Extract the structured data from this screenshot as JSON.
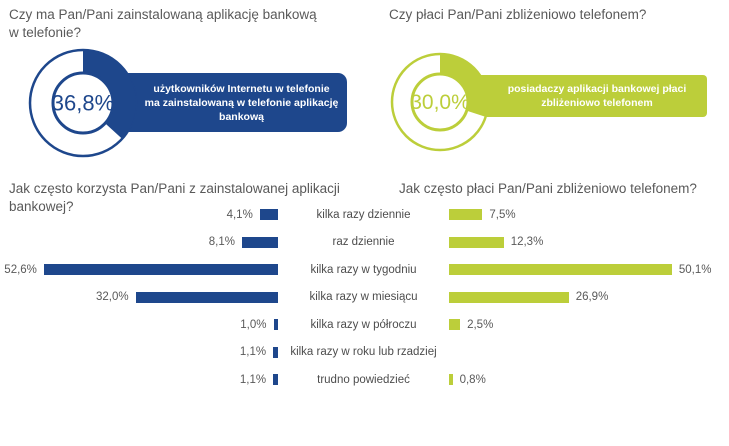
{
  "colors": {
    "blue": "#1E478C",
    "green": "#BCCE3A",
    "title_gray": "#595959",
    "category_gray": "#4d4d4d",
    "value_gray": "#595959"
  },
  "chart_data": [
    {
      "type": "pie",
      "subtype": "donut-single-value",
      "title": "Czy ma Pan/Pani zainstalowaną aplikację bankową\nw telefonie?",
      "value": 36.8,
      "remainder": 63.2,
      "value_label": "36,8%",
      "callout": "użytkowników Internetu w telefonie\nma zainstalowaną w telefonie aplikację\nbankową",
      "color": "#1E478C"
    },
    {
      "type": "pie",
      "subtype": "donut-single-value",
      "title": "Czy płaci Pan/Pani zbliżeniowo telefonem?",
      "value": 30.0,
      "remainder": 70.0,
      "value_label": "30,0%",
      "callout": "posiadaczy aplikacji bankowej płaci\nzbliżeniowo telefonem",
      "color": "#BCCE3A"
    },
    {
      "type": "bar",
      "orientation": "horizontal-right-to-left",
      "title": "Jak często korzysta Pan/Pani z zainstalowanej aplikacji\nbankowej?",
      "categories": [
        "kilka razy dziennie",
        "raz dziennie",
        "kilka razy w tygodniu",
        "kilka razy w miesiącu",
        "kilka razy w półroczu",
        "kilka razy w roku lub rzadziej",
        "trudno powiedzieć"
      ],
      "values": [
        4.1,
        8.1,
        52.6,
        32.0,
        1.0,
        1.1,
        1.1
      ],
      "value_labels": [
        "4,1%",
        "8,1%",
        "52,6%",
        "32,0%",
        "1,0%",
        "1,1%",
        "1,1%"
      ],
      "xlim": [
        0,
        55
      ],
      "color": "#1E478C"
    },
    {
      "type": "bar",
      "orientation": "horizontal-left-to-right",
      "title": "Jak często płaci Pan/Pani zbliżeniowo telefonem?",
      "categories": [
        "kilka razy dziennie",
        "raz dziennie",
        "kilka razy w tygodniu",
        "kilka razy w miesiącu",
        "kilka razy w półroczu",
        "kilka razy w roku lub rzadziej",
        "trudno powiedzieć"
      ],
      "values": [
        7.5,
        12.3,
        50.1,
        26.9,
        2.5,
        null,
        0.8
      ],
      "value_labels": [
        "7,5%",
        "12,3%",
        "50,1%",
        "26,9%",
        "2,5%",
        null,
        "0,8%"
      ],
      "xlim": [
        0,
        55
      ],
      "color": "#BCCE3A"
    }
  ]
}
